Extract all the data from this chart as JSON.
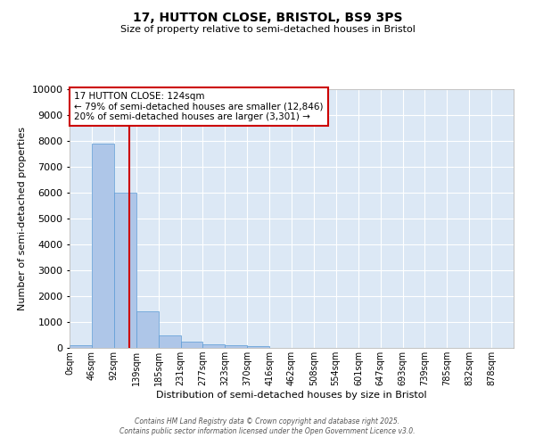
{
  "title": "17, HUTTON CLOSE, BRISTOL, BS9 3PS",
  "subtitle": "Size of property relative to semi-detached houses in Bristol",
  "xlabel": "Distribution of semi-detached houses by size in Bristol",
  "ylabel": "Number of semi-detached properties",
  "annotation_title": "17 HUTTON CLOSE: 124sqm",
  "annotation_line1": "← 79% of semi-detached houses are smaller (12,846)",
  "annotation_line2": "20% of semi-detached houses are larger (3,301) →",
  "property_size": 124,
  "bins": [
    0,
    46,
    92,
    139,
    185,
    231,
    277,
    323,
    370,
    416,
    462,
    508,
    554,
    601,
    647,
    693,
    739,
    785,
    832,
    878,
    924
  ],
  "counts": [
    100,
    7900,
    6000,
    1400,
    480,
    250,
    130,
    100,
    60,
    10,
    5,
    2,
    1,
    1,
    0,
    0,
    0,
    0,
    0,
    0
  ],
  "bar_color": "#aec6e8",
  "bar_edge_color": "#5b9bd5",
  "red_line_color": "#cc0000",
  "annotation_box_color": "#cc0000",
  "background_color": "#dce8f5",
  "grid_color": "#ffffff",
  "ylim": [
    0,
    10000
  ],
  "yticks": [
    0,
    1000,
    2000,
    3000,
    4000,
    5000,
    6000,
    7000,
    8000,
    9000,
    10000
  ],
  "footer_line1": "Contains HM Land Registry data © Crown copyright and database right 2025.",
  "footer_line2": "Contains public sector information licensed under the Open Government Licence v3.0."
}
